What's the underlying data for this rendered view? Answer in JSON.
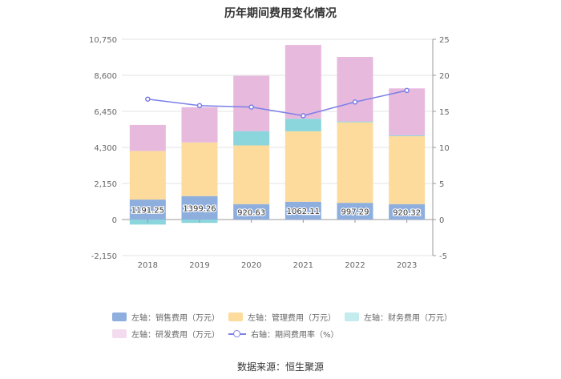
{
  "chart_data": {
    "type": "bar",
    "title": "历年期间费用变化情况",
    "categories": [
      "2018",
      "2019",
      "2020",
      "2021",
      "2022",
      "2023"
    ],
    "stacked": true,
    "left_axis": {
      "min": -2150,
      "max": 10750,
      "ticks": [
        "-2,150",
        "0",
        "2,150",
        "4,300",
        "6,450",
        "8,600",
        "10,750"
      ],
      "tick_values": [
        -2150,
        0,
        2150,
        4300,
        6450,
        8600,
        10750
      ]
    },
    "right_axis": {
      "min": -5,
      "max": 25,
      "ticks": [
        "-5",
        "0",
        "5",
        "10",
        "15",
        "20",
        "25"
      ],
      "tick_values": [
        -5,
        0,
        5,
        10,
        15,
        20,
        25
      ]
    },
    "series": [
      {
        "name": "左轴：销售费用（万元）",
        "axis": "left",
        "color": "#8eaede",
        "values": [
          1191.25,
          1399.26,
          920.63,
          1062.11,
          997.29,
          920.32
        ],
        "labels": [
          "1191.25",
          "1399.26",
          "920.63",
          "1062.11",
          "997.29",
          "920.32"
        ]
      },
      {
        "name": "左轴：管理费用（万元）",
        "axis": "left",
        "color": "#fddb9c",
        "values": [
          2900,
          3200,
          3500,
          4200,
          4800,
          4050
        ]
      },
      {
        "name": "左轴：财务费用（万元）",
        "axis": "left",
        "color": "#8ad6dc",
        "values": [
          -300,
          -200,
          850,
          750,
          50,
          50
        ]
      },
      {
        "name": "左轴：研发费用（万元）",
        "axis": "left",
        "color": "#e7b9dd",
        "values": [
          1550,
          2100,
          3300,
          4400,
          3850,
          2800
        ]
      },
      {
        "name": "右轴：期间费用率（%）",
        "axis": "right",
        "type": "line",
        "color": "#7b7fe8",
        "values": [
          16.7,
          15.8,
          15.6,
          14.4,
          16.3,
          17.9
        ]
      }
    ]
  },
  "source": "数据来源：恒生聚源"
}
